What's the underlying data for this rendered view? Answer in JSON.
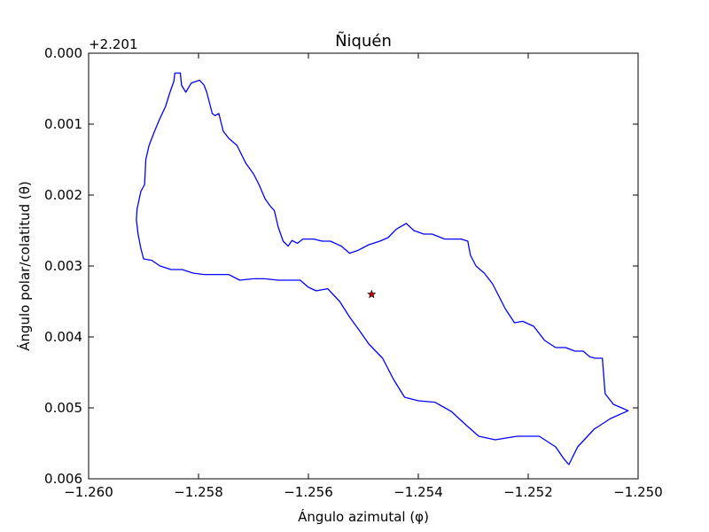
{
  "chart_data": {
    "type": "line",
    "title": "Ñiquén",
    "xlabel": "Ángulo azimutal (φ)",
    "ylabel": "Ángulo polar/colatitud (θ)",
    "y_offset_label": "+2.201",
    "xlim": [
      -1.26,
      -1.25
    ],
    "ylim": [
      0.006,
      0.0
    ],
    "y_axis_inverted": true,
    "grid": false,
    "x_ticks": [
      "−1.260",
      "−1.258",
      "−1.256",
      "−1.254",
      "−1.252",
      "−1.250"
    ],
    "y_ticks": [
      "0.000",
      "0.001",
      "0.002",
      "0.003",
      "0.004",
      "0.005",
      "0.006"
    ],
    "colors": {
      "boundary": "#0000ff",
      "marker": "#cc0000"
    },
    "series": [
      {
        "type": "line",
        "x": [
          -1.25843,
          -1.25833,
          -1.25831,
          -1.25823,
          -1.25813,
          -1.25798,
          -1.2579,
          -1.25785,
          -1.25775,
          -1.2577,
          -1.25763,
          -1.25755,
          -1.25745,
          -1.2573,
          -1.25714,
          -1.257,
          -1.2569,
          -1.25679,
          -1.2567,
          -1.25662,
          -1.25655,
          -1.25646,
          -1.25637,
          -1.2563,
          -1.2562,
          -1.2561,
          -1.2559,
          -1.25575,
          -1.2556,
          -1.2554,
          -1.25525,
          -1.2551,
          -1.2549,
          -1.2547,
          -1.25455,
          -1.2544,
          -1.25422,
          -1.25408,
          -1.2539,
          -1.25375,
          -1.25352,
          -1.25335,
          -1.25322,
          -1.2531,
          -1.25305,
          -1.25295,
          -1.2528,
          -1.25265,
          -1.25255,
          -1.25242,
          -1.25225,
          -1.2521,
          -1.2519,
          -1.2517,
          -1.2515,
          -1.25132,
          -1.25115,
          -1.251,
          -1.25088,
          -1.25078,
          -1.25065,
          -1.2506,
          -1.25045,
          -1.2503,
          -1.25018,
          -1.2505,
          -1.2508,
          -1.2511,
          -1.25126,
          -1.25135,
          -1.2515,
          -1.2518,
          -1.2522,
          -1.2526,
          -1.2529,
          -1.25312,
          -1.2534,
          -1.2537,
          -1.254,
          -1.25425,
          -1.25445,
          -1.25465,
          -1.2549,
          -1.25508,
          -1.25525,
          -1.25543,
          -1.25565,
          -1.25586,
          -1.256,
          -1.25615,
          -1.2563,
          -1.25655,
          -1.2568,
          -1.257,
          -1.25725,
          -1.25745,
          -1.25765,
          -1.2579,
          -1.2581,
          -1.2583,
          -1.2585,
          -1.2587,
          -1.25885,
          -1.259,
          -1.25905,
          -1.2591,
          -1.25913,
          -1.25912,
          -1.25905,
          -1.25898,
          -1.25896,
          -1.2589,
          -1.2588,
          -1.25872,
          -1.2586,
          -1.25852,
          -1.25845,
          -1.25843
        ],
        "y": [
          0.00028,
          0.00028,
          0.00045,
          0.00055,
          0.00042,
          0.00038,
          0.00045,
          0.00055,
          0.00085,
          0.00088,
          0.00085,
          0.0011,
          0.0012,
          0.0013,
          0.00155,
          0.0017,
          0.00185,
          0.00205,
          0.00215,
          0.00222,
          0.00245,
          0.00265,
          0.00272,
          0.00264,
          0.00268,
          0.00262,
          0.00262,
          0.00265,
          0.00265,
          0.00272,
          0.00282,
          0.00278,
          0.0027,
          0.00265,
          0.0026,
          0.00248,
          0.0024,
          0.0025,
          0.00255,
          0.00255,
          0.00262,
          0.00262,
          0.00262,
          0.00265,
          0.00285,
          0.003,
          0.0031,
          0.00325,
          0.0034,
          0.0036,
          0.0038,
          0.00378,
          0.00385,
          0.00405,
          0.00415,
          0.00415,
          0.0042,
          0.0042,
          0.00428,
          0.0043,
          0.0043,
          0.0048,
          0.00495,
          0.005,
          0.00504,
          0.00515,
          0.0053,
          0.00555,
          0.0058,
          0.00572,
          0.00555,
          0.0054,
          0.0054,
          0.00545,
          0.0054,
          0.00525,
          0.00505,
          0.00492,
          0.0049,
          0.00485,
          0.0046,
          0.0043,
          0.0041,
          0.0039,
          0.00372,
          0.0035,
          0.00332,
          0.00335,
          0.0033,
          0.0032,
          0.0032,
          0.0032,
          0.00318,
          0.00318,
          0.0032,
          0.00312,
          0.00312,
          0.00312,
          0.0031,
          0.00305,
          0.00305,
          0.003,
          0.00292,
          0.0029,
          0.00275,
          0.00255,
          0.00235,
          0.0022,
          0.00195,
          0.00185,
          0.0015,
          0.0013,
          0.0011,
          0.00095,
          0.00075,
          0.00055,
          0.0004,
          0.00028
        ]
      },
      {
        "type": "scatter",
        "marker": "star",
        "x": [
          -1.25485
        ],
        "y": [
          0.0034
        ]
      }
    ]
  }
}
